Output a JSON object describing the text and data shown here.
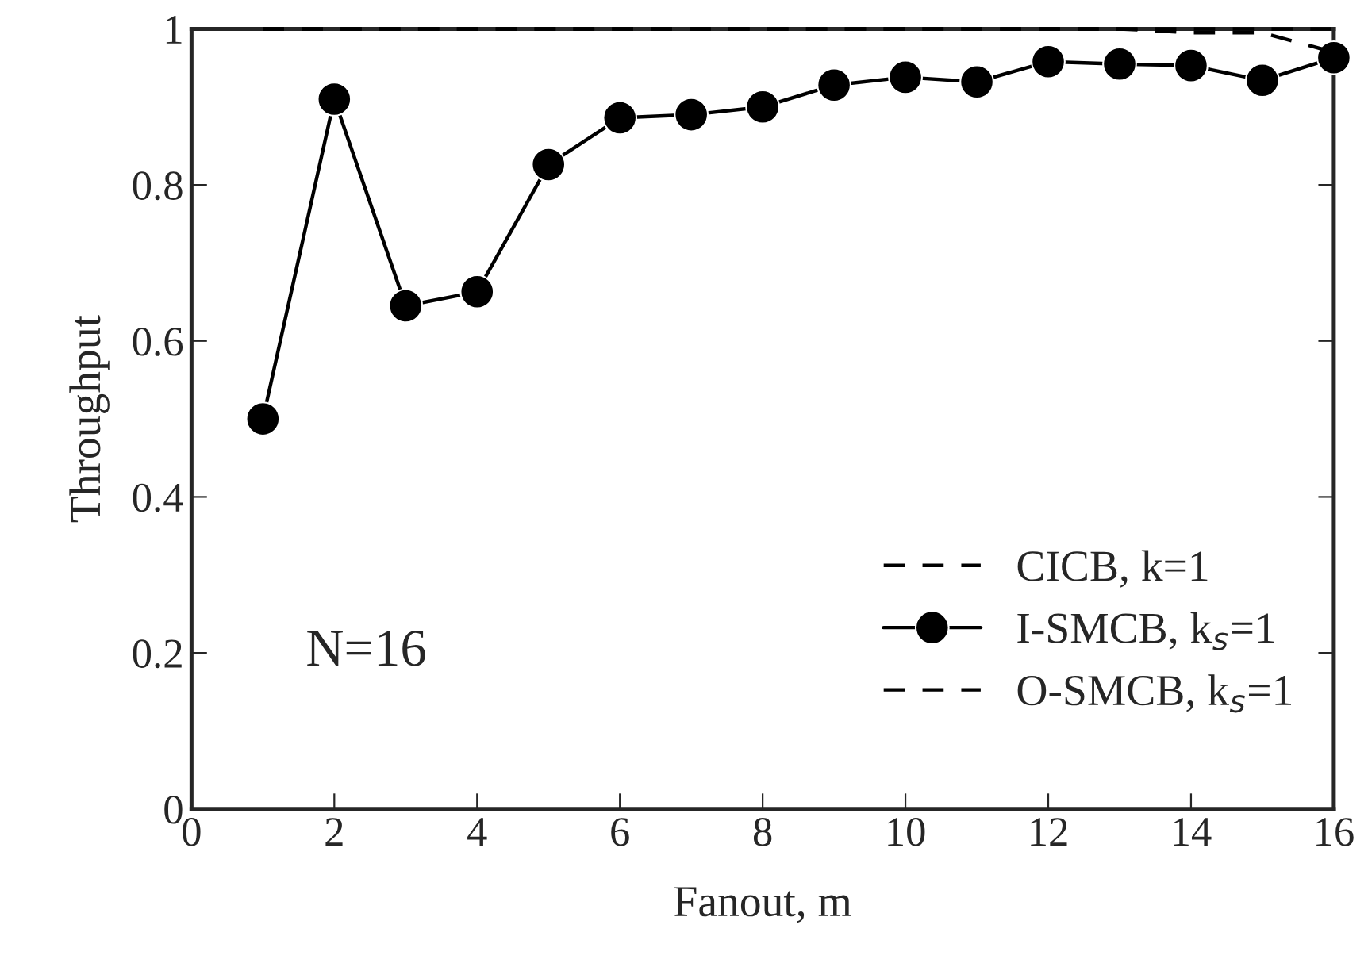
{
  "chart_data": {
    "type": "line",
    "xlabel": "Fanout, m",
    "ylabel": "Throughput",
    "x": [
      1,
      2,
      3,
      4,
      5,
      6,
      7,
      8,
      9,
      10,
      11,
      12,
      13,
      14,
      15,
      16
    ],
    "series": [
      {
        "name": "CICB, k=1",
        "color": "#000000",
        "line_style": "dashed",
        "marker": "none",
        "values": [
          1,
          1,
          1,
          1,
          1,
          1,
          1,
          1,
          1,
          1,
          1,
          1,
          1,
          1,
          1,
          1
        ]
      },
      {
        "name": "I-SMCB, k$_{s}$=1",
        "color": "#000000",
        "line_style": "solid",
        "marker": "circle",
        "values": [
          0.5,
          0.91,
          0.645,
          0.663,
          0.826,
          0.886,
          0.89,
          0.9,
          0.928,
          0.938,
          0.932,
          0.958,
          0.955,
          0.953,
          0.934,
          0.963
        ]
      },
      {
        "name": "O-SMCB, k$_{s}$=1",
        "color": "#000000",
        "line_style": "dashed",
        "marker": "none",
        "values": [
          1,
          1,
          1,
          1,
          1,
          1,
          1,
          1,
          1,
          1,
          1,
          1,
          1,
          0.995,
          0.995,
          0.97
        ]
      }
    ],
    "xlim": [
      0,
      16
    ],
    "ylim": [
      0,
      1
    ],
    "xticks": [
      0,
      2,
      4,
      6,
      8,
      10,
      12,
      14,
      16
    ],
    "yticks": [
      {
        "value": 0,
        "label": "0"
      },
      0.2,
      0.4,
      0.6,
      0.8,
      {
        "value": 1,
        "label": "1"
      }
    ],
    "annotations": [
      "N=16"
    ],
    "legend": "bottom right",
    "grid": false
  }
}
